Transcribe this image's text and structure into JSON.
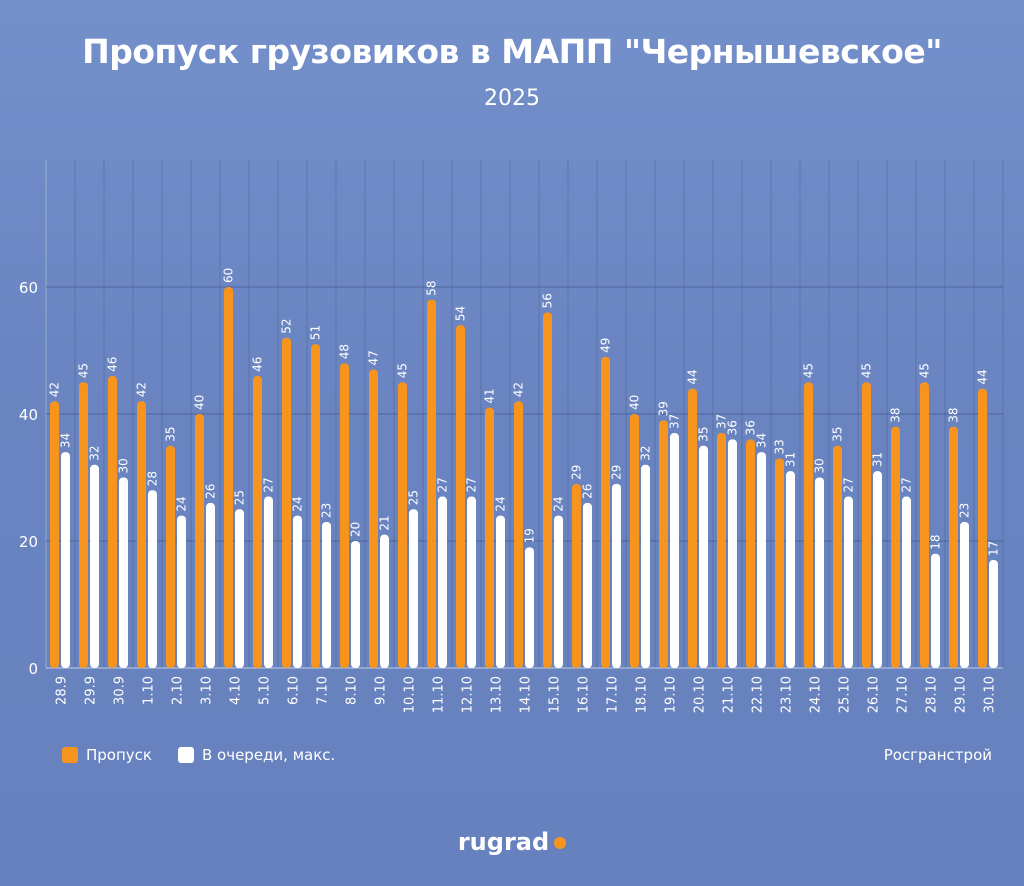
{
  "chart_data": {
    "type": "bar",
    "title": "Пропуск грузовиков в МАПП \"Чернышевское\"",
    "subtitle": "2025",
    "categories": [
      "28.9",
      "29.9",
      "30.9",
      "1.10",
      "2.10",
      "3.10",
      "4.10",
      "5.10",
      "6.10",
      "7.10",
      "8.10",
      "9.10",
      "10.10",
      "11.10",
      "12.10",
      "13.10",
      "14.10",
      "15.10",
      "16.10",
      "17.10",
      "18.10",
      "19.10",
      "20.10",
      "21.10",
      "22.10",
      "23.10",
      "24.10",
      "25.10",
      "26.10",
      "27.10",
      "28.10",
      "29.10",
      "30.10"
    ],
    "series": [
      {
        "name": "Пропуск",
        "color": "#f7941d",
        "values": [
          42,
          45,
          46,
          42,
          35,
          40,
          60,
          46,
          52,
          51,
          48,
          47,
          45,
          58,
          54,
          41,
          42,
          56,
          29,
          49,
          40,
          39,
          44,
          37,
          36,
          33,
          45,
          35,
          45,
          38,
          45,
          38,
          44
        ]
      },
      {
        "name": "В очереди, макс.",
        "color": "#ffffff",
        "values": [
          34,
          32,
          30,
          28,
          24,
          26,
          25,
          27,
          24,
          23,
          20,
          21,
          25,
          27,
          27,
          24,
          19,
          24,
          26,
          29,
          32,
          37,
          35,
          36,
          34,
          31,
          30,
          27,
          31,
          27,
          18,
          23,
          17
        ]
      }
    ],
    "yticks": [
      0,
      20,
      40,
      60
    ],
    "ylim": [
      0,
      80
    ],
    "grid": true,
    "legend": "bottom-left",
    "data_labels": true
  },
  "source": "Росгранстрой",
  "logo": {
    "text": "rugrad",
    "dot_color": "#f7941d"
  },
  "colors": {
    "background": "#6d88c4"
  }
}
